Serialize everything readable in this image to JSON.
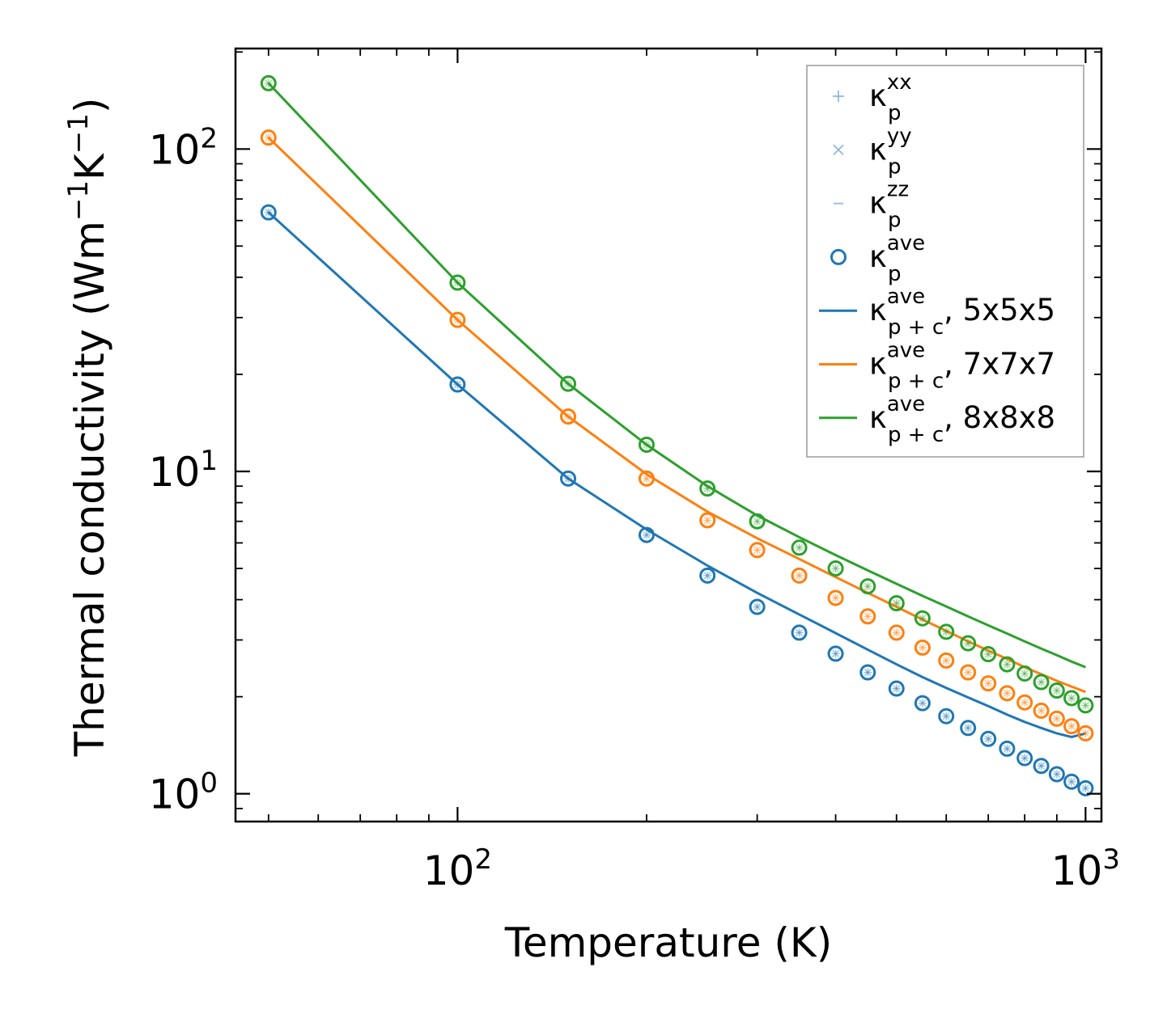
{
  "chart_data": {
    "type": "scatter",
    "xscale": "log",
    "yscale": "log",
    "xlim": [
      44.3,
      1060
    ],
    "ylim": [
      0.82,
      205
    ],
    "xlabel": "Temperature (K)",
    "ylabel": "Thermal conductivity (Wm⁻¹K⁻¹)",
    "ylabel_parts": {
      "base": "Thermal conductivity (Wm",
      "sup1": "−1",
      "mid": "K",
      "sup2": "−1",
      "end": ")"
    },
    "x_ticks": [
      {
        "value": 100,
        "base": "10",
        "exp": "2"
      },
      {
        "value": 1000,
        "base": "10",
        "exp": "3"
      }
    ],
    "y_ticks": [
      {
        "value": 1,
        "base": "10",
        "exp": "0"
      },
      {
        "value": 10,
        "base": "10",
        "exp": "1"
      },
      {
        "value": 100,
        "base": "10",
        "exp": "2"
      }
    ],
    "temperatures": [
      50,
      100,
      150,
      200,
      250,
      300,
      350,
      400,
      450,
      500,
      550,
      600,
      650,
      700,
      750,
      800,
      850,
      900,
      950,
      1000
    ],
    "series": [
      {
        "name": "5x5x5",
        "color": "#1f77b4",
        "points": [
          63.6,
          18.6,
          9.5,
          6.35,
          4.75,
          3.8,
          3.16,
          2.72,
          2.38,
          2.12,
          1.91,
          1.74,
          1.6,
          1.48,
          1.38,
          1.29,
          1.22,
          1.15,
          1.09,
          1.04
        ],
        "curve": [
          63.6,
          18.6,
          9.5,
          6.6,
          5.1,
          4.2,
          3.6,
          3.15,
          2.8,
          2.52,
          2.3,
          2.13,
          1.99,
          1.87,
          1.76,
          1.67,
          1.6,
          1.54,
          1.5,
          1.54
        ]
      },
      {
        "name": "7x7x7",
        "color": "#ff7f0e",
        "points": [
          108.5,
          29.5,
          14.8,
          9.5,
          7.05,
          5.7,
          4.75,
          4.05,
          3.55,
          3.16,
          2.84,
          2.59,
          2.38,
          2.2,
          2.05,
          1.92,
          1.81,
          1.71,
          1.62,
          1.54
        ],
        "curve": [
          108.5,
          29.5,
          14.8,
          9.8,
          7.5,
          6.2,
          5.35,
          4.7,
          4.2,
          3.8,
          3.47,
          3.2,
          2.97,
          2.78,
          2.62,
          2.47,
          2.35,
          2.24,
          2.15,
          2.07
        ]
      },
      {
        "name": "8x8x8",
        "color": "#2ca02c",
        "points": [
          160,
          38.5,
          18.7,
          12.1,
          8.85,
          7.0,
          5.8,
          5.0,
          4.4,
          3.9,
          3.5,
          3.18,
          2.93,
          2.71,
          2.52,
          2.36,
          2.22,
          2.09,
          1.98,
          1.88
        ],
        "curve": [
          160,
          38.5,
          18.7,
          12.1,
          9.0,
          7.3,
          6.25,
          5.5,
          4.93,
          4.48,
          4.11,
          3.81,
          3.55,
          3.33,
          3.14,
          2.97,
          2.82,
          2.69,
          2.57,
          2.47
        ]
      }
    ],
    "legend": {
      "position": "top-right",
      "entries": [
        {
          "marker": "plus",
          "color": "#8fb9dc",
          "base": "κ",
          "sup": "xx",
          "sub": "p",
          "suffix": ""
        },
        {
          "marker": "cross",
          "color": "#8fb9dc",
          "base": "κ",
          "sup": "yy",
          "sub": "p",
          "suffix": ""
        },
        {
          "marker": "dash",
          "color": "#8fb9dc",
          "base": "κ",
          "sup": "zz",
          "sub": "p",
          "suffix": ""
        },
        {
          "marker": "circle",
          "color": "#1f77b4",
          "base": "κ",
          "sup": "ave",
          "sub": "p",
          "suffix": ""
        },
        {
          "marker": "line",
          "color": "#1f77b4",
          "base": "κ",
          "sup": "ave",
          "sub": "p + c",
          "suffix": ", 5x5x5"
        },
        {
          "marker": "line",
          "color": "#ff7f0e",
          "base": "κ",
          "sup": "ave",
          "sub": "p + c",
          "suffix": ", 7x7x7"
        },
        {
          "marker": "line",
          "color": "#2ca02c",
          "base": "κ",
          "sup": "ave",
          "sub": "p + c",
          "suffix": ", 8x8x8"
        }
      ]
    }
  }
}
